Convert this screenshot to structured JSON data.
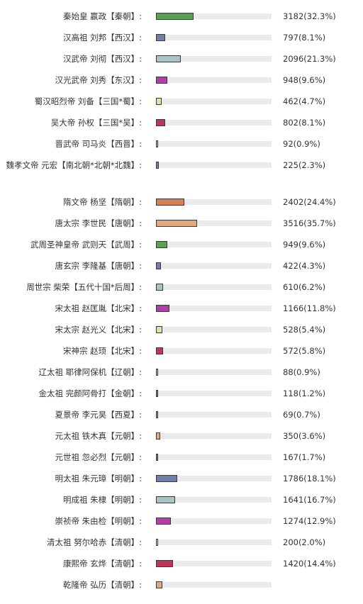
{
  "chart_data": {
    "type": "bar",
    "orientation": "horizontal",
    "grid": false,
    "categories": [
      "秦始皇 嬴政【秦朝】:",
      "汉高祖 刘邦【西汉】:",
      "汉武帝 刘彻【西汉】:",
      "汉光武帝 刘秀【东汉】:",
      "蜀汉昭烈帝 刘备【三国*蜀】:",
      "吴大帝 孙权【三国*吴】:",
      "晋武帝 司马炎【西晋】:",
      "魏孝文帝 元宏【南北朝*北朝*北魏】:",
      "隋文帝 杨坚【隋朝】:",
      "唐太宗 李世民【唐朝】:",
      "武周圣神皇帝 武则天【武周】:",
      "唐玄宗 李隆基【唐朝】:",
      "周世宗 柴荣【五代十国*后周】:",
      "宋太祖 赵匡胤【北宋】:",
      "宋太宗 赵光义【北宋】:",
      "宋神宗 赵顼【北宋】:",
      "辽太祖 耶律阿保机【辽朝】:",
      "金太祖 完颜阿骨打【金朝】:",
      "夏景帝 李元昊【西夏】:",
      "元太祖 铁木真【元朝】:",
      "元世祖 忽必烈【元朝】:",
      "明太祖 朱元璋【明朝】:",
      "明成祖 朱棣【明朝】:",
      "崇祯帝 朱由检【明朝】:",
      "清太祖 努尔哈赤【清朝】:",
      "康熙帝 玄烨【清朝】:",
      "乾隆帝 弘历【清朝】:"
    ],
    "values": [
      3182,
      797,
      2096,
      948,
      462,
      802,
      92,
      225,
      2402,
      3516,
      949,
      422,
      610,
      1166,
      528,
      572,
      88,
      118,
      69,
      350,
      167,
      1786,
      1641,
      1274,
      200,
      1420,
      null
    ],
    "percents": [
      32.3,
      8.1,
      21.3,
      9.6,
      4.7,
      8.1,
      0.9,
      2.3,
      24.4,
      35.7,
      9.6,
      4.3,
      6.2,
      11.8,
      5.4,
      5.8,
      0.9,
      1.2,
      0.7,
      3.6,
      1.7,
      18.1,
      16.7,
      12.9,
      2.0,
      14.4,
      null
    ],
    "value_labels": [
      "3182(32.3%)",
      "797(8.1%)",
      "2096(21.3%)",
      "948(9.6%)",
      "462(4.7%)",
      "802(8.1%)",
      "92(0.9%)",
      "225(2.3%)",
      "2402(24.4%)",
      "3516(35.7%)",
      "949(9.6%)",
      "422(4.3%)",
      "610(6.2%)",
      "1166(11.8%)",
      "528(5.4%)",
      "572(5.8%)",
      "88(0.9%)",
      "118(1.2%)",
      "69(0.7%)",
      "350(3.6%)",
      "167(1.7%)",
      "1786(18.1%)",
      "1641(16.7%)",
      "1274(12.9%)",
      "200(2.0%)",
      "1420(14.4%)",
      ""
    ],
    "bar_colors": [
      "#5aa055",
      "#6f7fa8",
      "#a8c4c4",
      "#b03fa8",
      "#dde3a3",
      "#c2355a",
      "#a8c4c4",
      "#6f7fa8",
      "#d97f57",
      "#deaa82",
      "#5aa055",
      "#6f7fa8",
      "#a8c4c4",
      "#b03fa8",
      "#dde3a3",
      "#c2355a",
      "#a8c4c4",
      "#6f7fa8",
      "#d97f57",
      "#deaa82",
      "#5aa055",
      "#6f7fa8",
      "#a8c4c4",
      "#b03fa8",
      "#dde3a3",
      "#c2355a",
      "#deaa82"
    ],
    "track_color": "#ebebeb",
    "xlim_percent": [
      0,
      100
    ]
  }
}
